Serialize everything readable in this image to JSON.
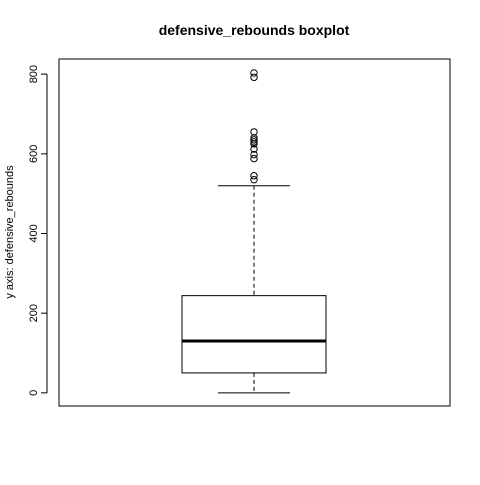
{
  "chart_data": {
    "type": "boxplot",
    "title": "defensive_rebounds boxplot",
    "xlabel": "",
    "ylabel": "y axis: defensive_rebounds",
    "ylim": [
      -33,
      838
    ],
    "y_ticks": [
      0,
      200,
      400,
      600,
      800
    ],
    "y_tick_labels": [
      "0",
      "200",
      "400",
      "600",
      "800"
    ],
    "grid": false,
    "legend": "none",
    "box": {
      "whisker_low": 0,
      "q1": 50,
      "median": 130,
      "q3": 244,
      "whisker_high": 520
    },
    "outliers": [
      535,
      545,
      588,
      598,
      612,
      625,
      630,
      635,
      640,
      655,
      792,
      803
    ]
  },
  "colors": {
    "background": "#ffffff",
    "line": "#000000"
  }
}
